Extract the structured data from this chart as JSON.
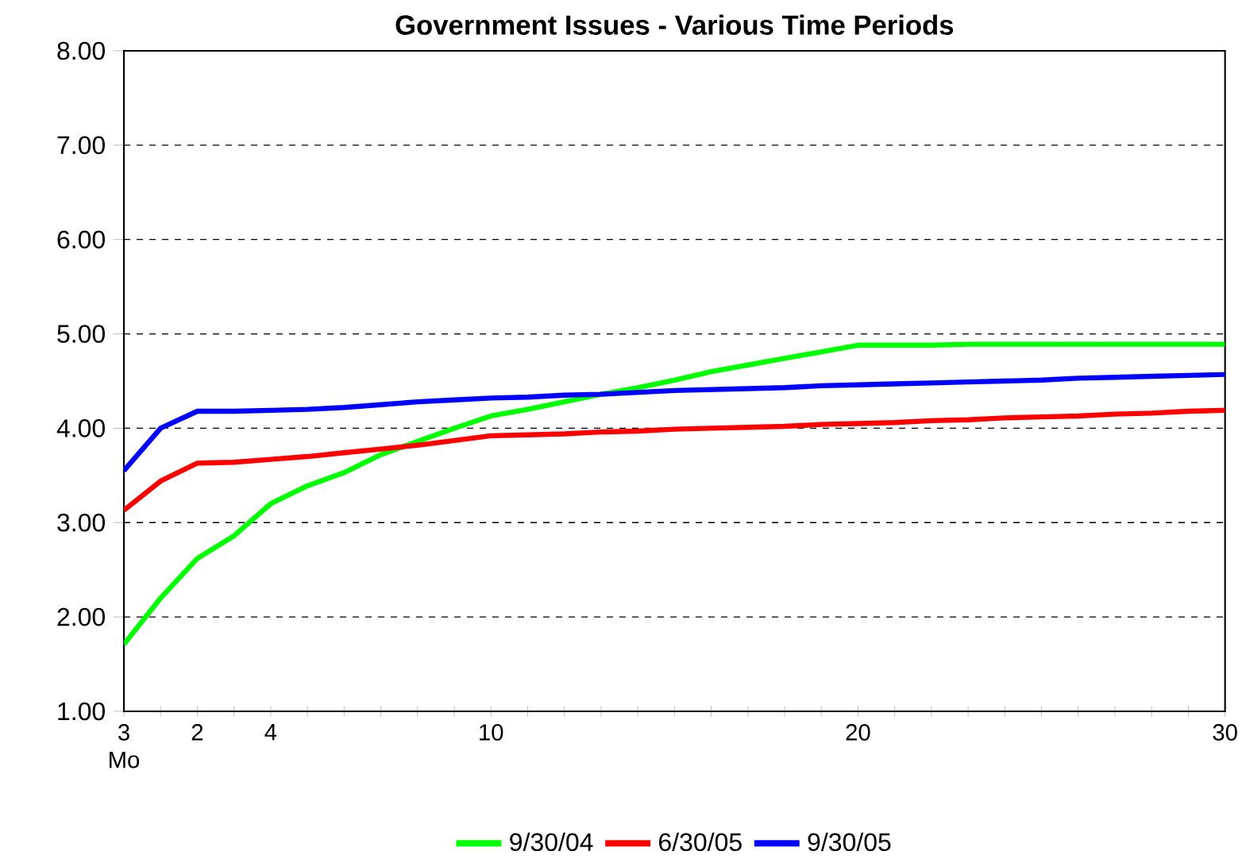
{
  "chart_data": {
    "type": "line",
    "title": "Government Issues - Various Time Periods",
    "categories": [
      "3 Mo",
      null,
      "2",
      null,
      "4",
      null,
      null,
      null,
      null,
      null,
      "10",
      null,
      null,
      null,
      null,
      null,
      null,
      null,
      null,
      null,
      "20",
      null,
      null,
      null,
      null,
      null,
      null,
      null,
      null,
      null,
      "30"
    ],
    "series": [
      {
        "name": "9/30/04",
        "color": "#00ff00",
        "values": [
          1.71,
          2.2,
          2.62,
          2.86,
          3.2,
          3.39,
          3.53,
          3.72,
          3.86,
          4.0,
          4.13,
          4.2,
          4.28,
          4.36,
          4.43,
          4.51,
          4.6,
          4.67,
          4.74,
          4.81,
          4.88,
          4.88,
          4.88,
          4.89,
          4.89,
          4.89,
          4.89,
          4.89,
          4.89,
          4.89,
          4.89
        ]
      },
      {
        "name": "6/30/05",
        "color": "#ff0000",
        "values": [
          3.13,
          3.44,
          3.63,
          3.64,
          3.67,
          3.7,
          3.74,
          3.78,
          3.82,
          3.87,
          3.92,
          3.93,
          3.94,
          3.96,
          3.97,
          3.99,
          4.0,
          4.01,
          4.02,
          4.04,
          4.05,
          4.06,
          4.08,
          4.09,
          4.11,
          4.12,
          4.13,
          4.15,
          4.16,
          4.18,
          4.19
        ]
      },
      {
        "name": "9/30/05",
        "color": "#0000ff",
        "values": [
          3.55,
          4.0,
          4.18,
          4.18,
          4.19,
          4.2,
          4.22,
          4.25,
          4.28,
          4.3,
          4.32,
          4.33,
          4.35,
          4.36,
          4.38,
          4.4,
          4.41,
          4.42,
          4.43,
          4.45,
          4.46,
          4.47,
          4.48,
          4.49,
          4.5,
          4.51,
          4.53,
          4.54,
          4.55,
          4.56,
          4.57
        ]
      }
    ],
    "ylim": [
      1,
      8
    ],
    "yticks": [
      {
        "value": 1,
        "label": "1.00"
      },
      {
        "value": 2,
        "label": "2.00"
      },
      {
        "value": 3,
        "label": "3.00"
      },
      {
        "value": 4,
        "label": "4.00"
      },
      {
        "value": 5,
        "label": "5.00"
      },
      {
        "value": 6,
        "label": "6.00"
      },
      {
        "value": 7,
        "label": "7.00"
      },
      {
        "value": 8,
        "label": "8.00"
      }
    ],
    "grid": "y",
    "legend": "bottom",
    "marker": "none",
    "line_style": "solid"
  }
}
